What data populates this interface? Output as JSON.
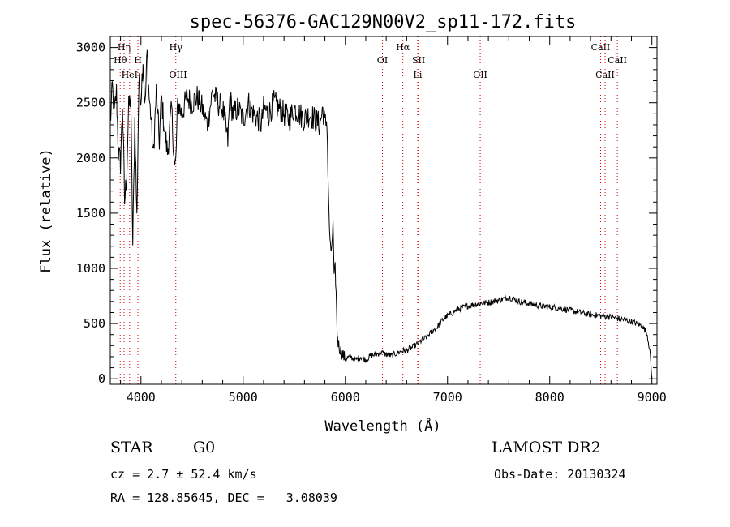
{
  "chart_data": {
    "type": "line",
    "title": "spec-56376-GAC129N00V2_sp11-172.fits",
    "xlabel": "Wavelength (Å)",
    "ylabel": "Flux (relative)",
    "xlim": [
      3700,
      9050
    ],
    "ylim": [
      -50,
      3100
    ],
    "x_ticks": [
      4000,
      5000,
      6000,
      7000,
      8000,
      9000
    ],
    "y_ticks": [
      0,
      500,
      1000,
      1500,
      2000,
      2500,
      3000
    ],
    "x_minor_step": 200,
    "y_minor_step": 100,
    "line_color": "#000000",
    "marker_color": "#cc0000",
    "lines": [
      {
        "label": "Hη",
        "wavelength": 3835,
        "row": 0
      },
      {
        "label": "Hθ",
        "wavelength": 3797,
        "row": 1
      },
      {
        "label": "HeI",
        "wavelength": 3889,
        "row": 2
      },
      {
        "label": "H",
        "wavelength": 3970,
        "row": 1
      },
      {
        "label": "Hγ",
        "wavelength": 4341,
        "row": 0
      },
      {
        "label": "OIII",
        "wavelength": 4363,
        "row": 2
      },
      {
        "label": "OI",
        "wavelength": 6363,
        "row": 1
      },
      {
        "label": "Hα",
        "wavelength": 6563,
        "row": 0
      },
      {
        "label": "SII",
        "wavelength": 6717,
        "row": 1
      },
      {
        "label": "Li",
        "wavelength": 6708,
        "row": 2
      },
      {
        "label": "OII",
        "wavelength": 7320,
        "row": 2
      },
      {
        "label": "CaII",
        "wavelength": 8498,
        "row": 0
      },
      {
        "label": "CaII",
        "wavelength": 8662,
        "row": 1
      },
      {
        "label": "CaII",
        "wavelength": 8542,
        "row": 2
      }
    ],
    "series": [
      {
        "x": [
          3700,
          3720,
          3740,
          3760,
          3780,
          3800,
          3820,
          3840,
          3860,
          3880,
          3900,
          3920,
          3940,
          3960,
          3980,
          4000,
          4020,
          4040,
          4060,
          4080,
          4100,
          4120,
          4150,
          4180,
          4200,
          4230,
          4260,
          4300,
          4330,
          4340,
          4360,
          4400,
          4450,
          4500,
          4550,
          4600,
          4650,
          4700,
          4750,
          4800,
          4850,
          4870,
          4900,
          4950,
          5000,
          5050,
          5100,
          5150,
          5180,
          5200,
          5250,
          5300,
          5350,
          5400,
          5450,
          5500,
          5550,
          5600,
          5650,
          5700,
          5750,
          5780,
          5800,
          5820,
          5840,
          5860,
          5880,
          5890,
          5900,
          5910,
          5920,
          5930,
          5940,
          5960,
          5980,
          6000,
          6050,
          6100,
          6150,
          6200,
          6250,
          6300,
          6350,
          6400,
          6450,
          6500,
          6550,
          6600,
          6650,
          6700,
          6750,
          6800,
          6850,
          6900,
          6950,
          7000,
          7100,
          7200,
          7300,
          7400,
          7500,
          7600,
          7700,
          7800,
          7900,
          8000,
          8100,
          8200,
          8300,
          8400,
          8500,
          8600,
          8700,
          8800,
          8900,
          8950,
          8980,
          9000
        ],
        "y": [
          2300,
          2650,
          2400,
          2600,
          2050,
          1950,
          2500,
          1600,
          1850,
          2450,
          2550,
          1200,
          2350,
          1450,
          2700,
          2550,
          2900,
          2450,
          2950,
          2550,
          2350,
          2000,
          2600,
          2150,
          2550,
          2250,
          2050,
          2450,
          1900,
          1950,
          2500,
          2400,
          2550,
          2500,
          2550,
          2450,
          2300,
          2600,
          2500,
          2450,
          2150,
          2550,
          2400,
          2450,
          2350,
          2500,
          2400,
          2350,
          2300,
          2450,
          2400,
          2500,
          2450,
          2400,
          2350,
          2450,
          2400,
          2350,
          2400,
          2350,
          2300,
          2450,
          2300,
          2350,
          1450,
          1100,
          1400,
          900,
          1000,
          780,
          420,
          330,
          290,
          240,
          210,
          180,
          200,
          170,
          200,
          170,
          210,
          220,
          240,
          220,
          210,
          230,
          250,
          260,
          280,
          310,
          350,
          380,
          430,
          470,
          530,
          570,
          630,
          660,
          680,
          690,
          710,
          740,
          700,
          680,
          660,
          650,
          640,
          620,
          600,
          580,
          570,
          560,
          540,
          520,
          480,
          420,
          260,
          0
        ]
      }
    ]
  },
  "info": {
    "class_label": "STAR",
    "subclass": "G0",
    "survey": "LAMOST DR2",
    "redshift": "cz = 2.7 ± 52.4 km/s",
    "obs_date": "Obs-Date: 20130324",
    "coords": "RA = 128.85645, DEC =   3.08039"
  }
}
